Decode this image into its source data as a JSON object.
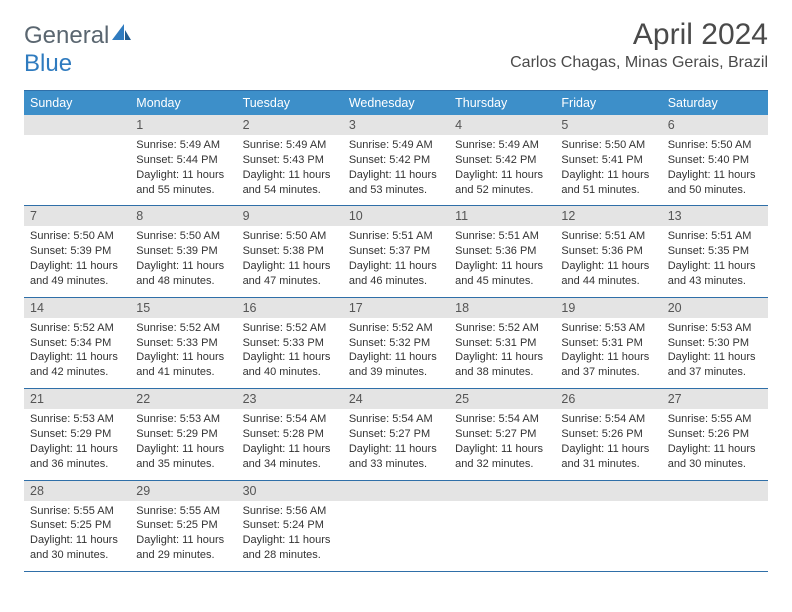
{
  "brand": {
    "part1": "General",
    "part2": "Blue"
  },
  "title": {
    "month": "April 2024",
    "location": "Carlos Chagas, Minas Gerais, Brazil"
  },
  "colors": {
    "header_band": "#3d8fc9",
    "rule": "#2f6fa8",
    "daynum_bg": "#e4e4e4",
    "text": "#333333",
    "brand_gray": "#5a6670",
    "brand_blue": "#2f7bbf"
  },
  "weekdays": [
    "Sunday",
    "Monday",
    "Tuesday",
    "Wednesday",
    "Thursday",
    "Friday",
    "Saturday"
  ],
  "weeks": [
    {
      "nums": [
        "",
        "1",
        "2",
        "3",
        "4",
        "5",
        "6"
      ],
      "cells": [
        null,
        {
          "sunrise": "Sunrise: 5:49 AM",
          "sunset": "Sunset: 5:44 PM",
          "daylight": "Daylight: 11 hours and 55 minutes."
        },
        {
          "sunrise": "Sunrise: 5:49 AM",
          "sunset": "Sunset: 5:43 PM",
          "daylight": "Daylight: 11 hours and 54 minutes."
        },
        {
          "sunrise": "Sunrise: 5:49 AM",
          "sunset": "Sunset: 5:42 PM",
          "daylight": "Daylight: 11 hours and 53 minutes."
        },
        {
          "sunrise": "Sunrise: 5:49 AM",
          "sunset": "Sunset: 5:42 PM",
          "daylight": "Daylight: 11 hours and 52 minutes."
        },
        {
          "sunrise": "Sunrise: 5:50 AM",
          "sunset": "Sunset: 5:41 PM",
          "daylight": "Daylight: 11 hours and 51 minutes."
        },
        {
          "sunrise": "Sunrise: 5:50 AM",
          "sunset": "Sunset: 5:40 PM",
          "daylight": "Daylight: 11 hours and 50 minutes."
        }
      ]
    },
    {
      "nums": [
        "7",
        "8",
        "9",
        "10",
        "11",
        "12",
        "13"
      ],
      "cells": [
        {
          "sunrise": "Sunrise: 5:50 AM",
          "sunset": "Sunset: 5:39 PM",
          "daylight": "Daylight: 11 hours and 49 minutes."
        },
        {
          "sunrise": "Sunrise: 5:50 AM",
          "sunset": "Sunset: 5:39 PM",
          "daylight": "Daylight: 11 hours and 48 minutes."
        },
        {
          "sunrise": "Sunrise: 5:50 AM",
          "sunset": "Sunset: 5:38 PM",
          "daylight": "Daylight: 11 hours and 47 minutes."
        },
        {
          "sunrise": "Sunrise: 5:51 AM",
          "sunset": "Sunset: 5:37 PM",
          "daylight": "Daylight: 11 hours and 46 minutes."
        },
        {
          "sunrise": "Sunrise: 5:51 AM",
          "sunset": "Sunset: 5:36 PM",
          "daylight": "Daylight: 11 hours and 45 minutes."
        },
        {
          "sunrise": "Sunrise: 5:51 AM",
          "sunset": "Sunset: 5:36 PM",
          "daylight": "Daylight: 11 hours and 44 minutes."
        },
        {
          "sunrise": "Sunrise: 5:51 AM",
          "sunset": "Sunset: 5:35 PM",
          "daylight": "Daylight: 11 hours and 43 minutes."
        }
      ]
    },
    {
      "nums": [
        "14",
        "15",
        "16",
        "17",
        "18",
        "19",
        "20"
      ],
      "cells": [
        {
          "sunrise": "Sunrise: 5:52 AM",
          "sunset": "Sunset: 5:34 PM",
          "daylight": "Daylight: 11 hours and 42 minutes."
        },
        {
          "sunrise": "Sunrise: 5:52 AM",
          "sunset": "Sunset: 5:33 PM",
          "daylight": "Daylight: 11 hours and 41 minutes."
        },
        {
          "sunrise": "Sunrise: 5:52 AM",
          "sunset": "Sunset: 5:33 PM",
          "daylight": "Daylight: 11 hours and 40 minutes."
        },
        {
          "sunrise": "Sunrise: 5:52 AM",
          "sunset": "Sunset: 5:32 PM",
          "daylight": "Daylight: 11 hours and 39 minutes."
        },
        {
          "sunrise": "Sunrise: 5:52 AM",
          "sunset": "Sunset: 5:31 PM",
          "daylight": "Daylight: 11 hours and 38 minutes."
        },
        {
          "sunrise": "Sunrise: 5:53 AM",
          "sunset": "Sunset: 5:31 PM",
          "daylight": "Daylight: 11 hours and 37 minutes."
        },
        {
          "sunrise": "Sunrise: 5:53 AM",
          "sunset": "Sunset: 5:30 PM",
          "daylight": "Daylight: 11 hours and 37 minutes."
        }
      ]
    },
    {
      "nums": [
        "21",
        "22",
        "23",
        "24",
        "25",
        "26",
        "27"
      ],
      "cells": [
        {
          "sunrise": "Sunrise: 5:53 AM",
          "sunset": "Sunset: 5:29 PM",
          "daylight": "Daylight: 11 hours and 36 minutes."
        },
        {
          "sunrise": "Sunrise: 5:53 AM",
          "sunset": "Sunset: 5:29 PM",
          "daylight": "Daylight: 11 hours and 35 minutes."
        },
        {
          "sunrise": "Sunrise: 5:54 AM",
          "sunset": "Sunset: 5:28 PM",
          "daylight": "Daylight: 11 hours and 34 minutes."
        },
        {
          "sunrise": "Sunrise: 5:54 AM",
          "sunset": "Sunset: 5:27 PM",
          "daylight": "Daylight: 11 hours and 33 minutes."
        },
        {
          "sunrise": "Sunrise: 5:54 AM",
          "sunset": "Sunset: 5:27 PM",
          "daylight": "Daylight: 11 hours and 32 minutes."
        },
        {
          "sunrise": "Sunrise: 5:54 AM",
          "sunset": "Sunset: 5:26 PM",
          "daylight": "Daylight: 11 hours and 31 minutes."
        },
        {
          "sunrise": "Sunrise: 5:55 AM",
          "sunset": "Sunset: 5:26 PM",
          "daylight": "Daylight: 11 hours and 30 minutes."
        }
      ]
    },
    {
      "nums": [
        "28",
        "29",
        "30",
        "",
        "",
        "",
        ""
      ],
      "cells": [
        {
          "sunrise": "Sunrise: 5:55 AM",
          "sunset": "Sunset: 5:25 PM",
          "daylight": "Daylight: 11 hours and 30 minutes."
        },
        {
          "sunrise": "Sunrise: 5:55 AM",
          "sunset": "Sunset: 5:25 PM",
          "daylight": "Daylight: 11 hours and 29 minutes."
        },
        {
          "sunrise": "Sunrise: 5:56 AM",
          "sunset": "Sunset: 5:24 PM",
          "daylight": "Daylight: 11 hours and 28 minutes."
        },
        null,
        null,
        null,
        null
      ]
    }
  ]
}
